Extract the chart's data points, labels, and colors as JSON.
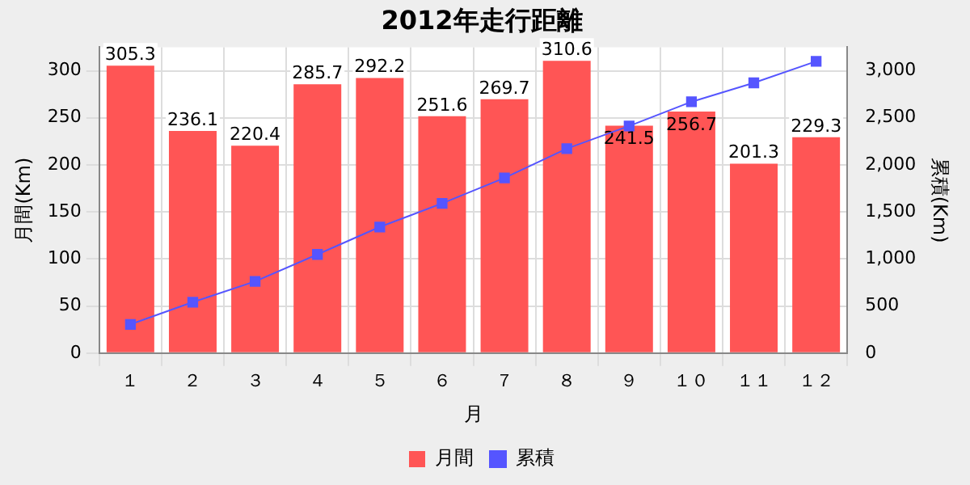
{
  "chart_data": {
    "type": "bar",
    "title": "2012年走行距離",
    "xlabel": "月",
    "ylabel": "月間(Km)",
    "y2label": "累積(Km)",
    "categories": [
      "１",
      "２",
      "３",
      "４",
      "５",
      "６",
      "７",
      "８",
      "９",
      "１０",
      "１１",
      "１２"
    ],
    "series": [
      {
        "name": "月間",
        "color": "#ff5555",
        "values": [
          305.3,
          236.1,
          220.4,
          285.7,
          292.2,
          251.6,
          269.7,
          310.6,
          241.5,
          256.7,
          201.3,
          229.3
        ],
        "value_labels": [
          "305.3",
          "236.1",
          "220.4",
          "285.7",
          "292.2",
          "251.6",
          "269.7",
          "310.6",
          "241.5",
          "256.7",
          "201.3",
          "229.3"
        ]
      },
      {
        "name": "累積",
        "type": "line",
        "axis": "y2",
        "color": "#5555ff",
        "marker": "square",
        "values": [
          305,
          541,
          762,
          1048,
          1340,
          1591,
          1861,
          2172,
          2413,
          2670,
          2871,
          3100
        ]
      }
    ],
    "ylim": [
      0,
      325
    ],
    "yticks": [
      0,
      50,
      100,
      150,
      200,
      250,
      300
    ],
    "y2lim": [
      0,
      3250
    ],
    "y2ticks": [
      0,
      {
        "value": 500,
        "label": "500"
      },
      {
        "value": 1000,
        "label": "1,000"
      },
      {
        "value": 1500,
        "label": "1,500"
      },
      {
        "value": 2000,
        "label": "2,000"
      },
      {
        "value": 2500,
        "label": "2,500"
      },
      {
        "value": 3000,
        "label": "3,000"
      }
    ],
    "grid": true,
    "legend": "bottom"
  }
}
